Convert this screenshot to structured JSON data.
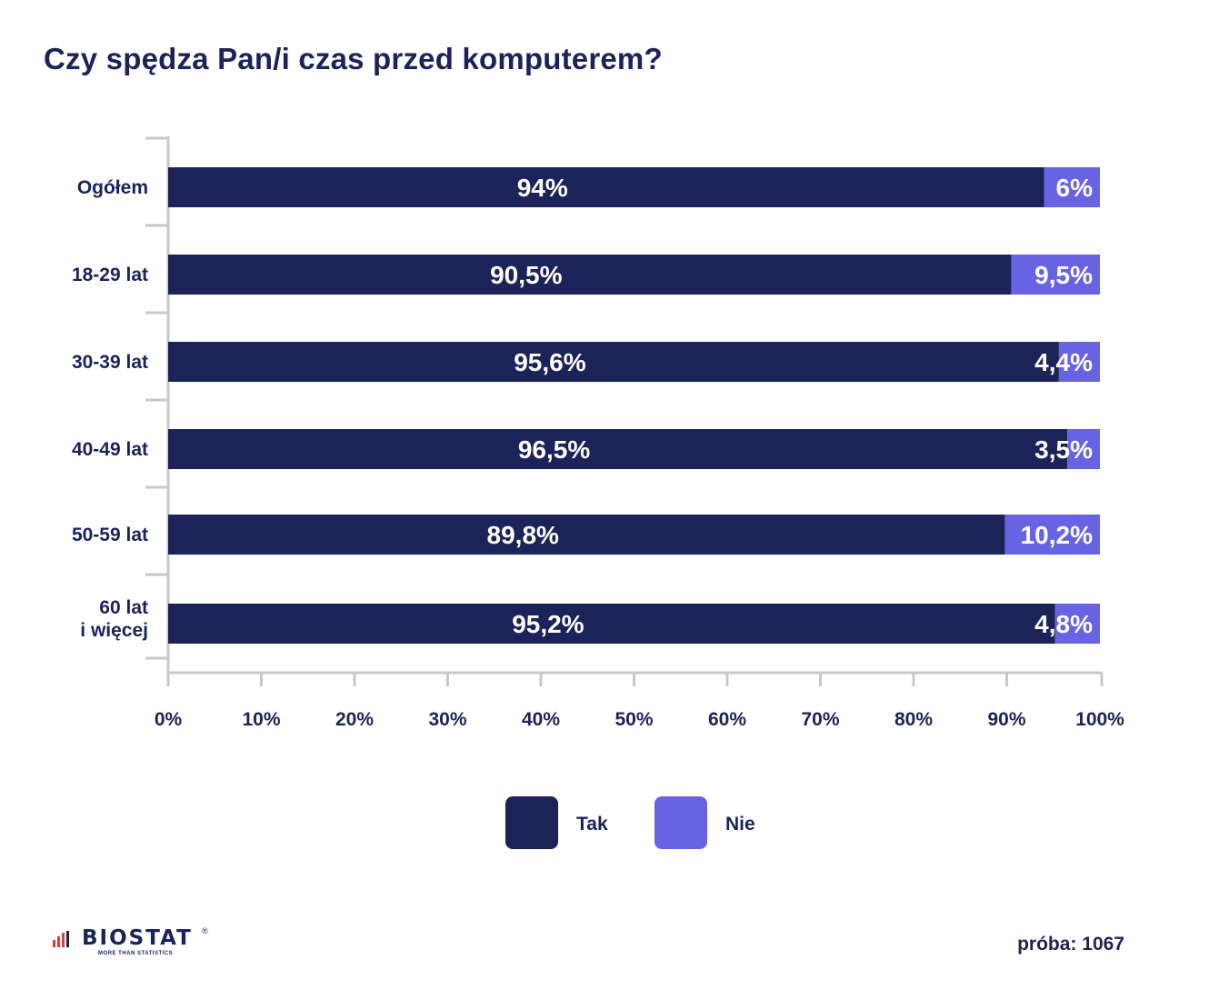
{
  "title": "Czy spędza Pan/i czas przed komputerem?",
  "sample_label": "próba: 1067",
  "logo": {
    "name": "BIOSTAT",
    "tagline": "MORE THAN STATISTICS",
    "reg": "®"
  },
  "colors": {
    "tak": "#1b2359",
    "nie": "#6863e3",
    "axis": "#c8c8c8",
    "text": "#1b2359"
  },
  "chart_data": {
    "type": "bar",
    "orientation": "horizontal",
    "stacked": true,
    "title": "Czy spędza Pan/i czas przed komputerem?",
    "categories": [
      [
        "Ogółem"
      ],
      [
        "18-29 lat"
      ],
      [
        "30-39 lat"
      ],
      [
        "40-49 lat"
      ],
      [
        "50-59 lat"
      ],
      [
        "60 lat",
        "i więcej"
      ]
    ],
    "series": [
      {
        "name": "Tak",
        "values": [
          94,
          90.5,
          95.6,
          96.5,
          89.8,
          95.2
        ],
        "labels": [
          "94%",
          "90,5%",
          "95,6%",
          "96,5%",
          "89,8%",
          "95,2%"
        ]
      },
      {
        "name": "Nie",
        "values": [
          6,
          9.5,
          4.4,
          3.5,
          10.2,
          4.8
        ],
        "labels": [
          "6%",
          "9,5%",
          "4,4%",
          "3,5%",
          "10,2%",
          "4,8%"
        ]
      }
    ],
    "xlim": [
      0,
      100
    ],
    "xticks": [
      "0%",
      "10%",
      "20%",
      "30%",
      "40%",
      "50%",
      "60%",
      "70%",
      "80%",
      "90%",
      "100%"
    ],
    "legend": [
      "Tak",
      "Nie"
    ],
    "legend_position": "bottom-center"
  }
}
